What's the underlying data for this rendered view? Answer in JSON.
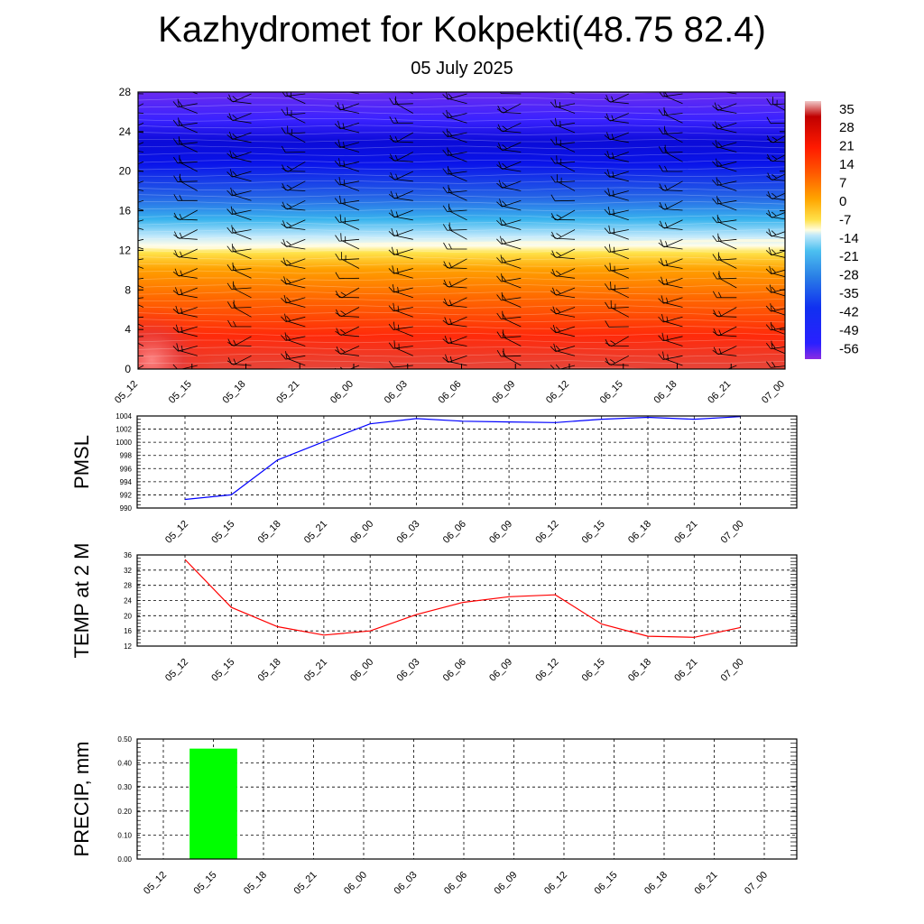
{
  "header": {
    "title": "Kazhydromet for Kokpekti(48.75 82.4)",
    "subtitle": "05 July 2025"
  },
  "time_labels": [
    "05_12",
    "05_15",
    "05_18",
    "05_21",
    "06_00",
    "06_03",
    "06_06",
    "06_09",
    "06_12",
    "06_15",
    "06_18",
    "06_21",
    "07_00"
  ],
  "chart_data": [
    {
      "type": "heatmap",
      "y_ticks": [
        "0",
        "4",
        "8",
        "12",
        "16",
        "20",
        "24",
        "28"
      ],
      "ylim": [
        0,
        28
      ],
      "colorbar": {
        "labels": [
          "35",
          "28",
          "21",
          "14",
          "7",
          "0",
          "-7",
          "-14",
          "-21",
          "-28",
          "-35",
          "-42",
          "-49",
          "-56"
        ],
        "range": [
          -60,
          38
        ]
      },
      "freezing_level": [
        12.4,
        12.2,
        12.3,
        12.4,
        12.6,
        12.7,
        12.7,
        12.8,
        12.8,
        12.8,
        12.9,
        13.0,
        13.0
      ],
      "surface_temps": [
        34,
        30,
        24,
        22,
        23,
        25,
        27,
        28,
        28,
        26,
        24,
        23,
        24
      ],
      "barbs_shown": true
    },
    {
      "type": "line",
      "ylabel": "PMSL",
      "y_ticks": [
        "990",
        "992",
        "994",
        "996",
        "998",
        "1000",
        "1002",
        "1004"
      ],
      "ylim": [
        990,
        1004
      ],
      "color": "#0000ff",
      "categories": [
        "05_12",
        "05_15",
        "05_18",
        "05_21",
        "06_00",
        "06_03",
        "06_06",
        "06_09",
        "06_12",
        "06_15",
        "06_18",
        "06_21",
        "07_00"
      ],
      "values": [
        991.3,
        992.0,
        997.3,
        1000.1,
        1002.8,
        1003.6,
        1003.2,
        1003.1,
        1003.0,
        1003.5,
        1003.8,
        1003.5,
        1003.9
      ],
      "grid": true
    },
    {
      "type": "line",
      "ylabel": "TEMP at 2 M",
      "y_ticks": [
        "12",
        "16",
        "20",
        "24",
        "28",
        "32",
        "36"
      ],
      "ylim": [
        12,
        36
      ],
      "color": "#ff0000",
      "categories": [
        "05_12",
        "05_15",
        "05_18",
        "05_21",
        "06_00",
        "06_03",
        "06_06",
        "06_09",
        "06_12",
        "06_15",
        "06_18",
        "06_21",
        "07_00"
      ],
      "values": [
        34.8,
        22.2,
        17.1,
        14.9,
        16.0,
        20.3,
        23.5,
        25.0,
        25.5,
        17.8,
        14.6,
        14.3,
        16.9
      ],
      "grid": true
    },
    {
      "type": "bar",
      "ylabel": "PRECIP, mm",
      "y_ticks": [
        "0.00",
        "0.10",
        "0.20",
        "0.30",
        "0.40",
        "0.50"
      ],
      "ylim": [
        0,
        0.5
      ],
      "color": "#00ff00",
      "categories": [
        "05_12",
        "05_15",
        "05_18",
        "05_21",
        "06_00",
        "06_03",
        "06_06",
        "06_09",
        "06_12",
        "06_15",
        "06_18",
        "06_21",
        "07_00"
      ],
      "values": [
        0,
        0.46,
        0,
        0,
        0,
        0,
        0,
        0,
        0,
        0,
        0,
        0,
        0
      ],
      "grid": true
    }
  ]
}
